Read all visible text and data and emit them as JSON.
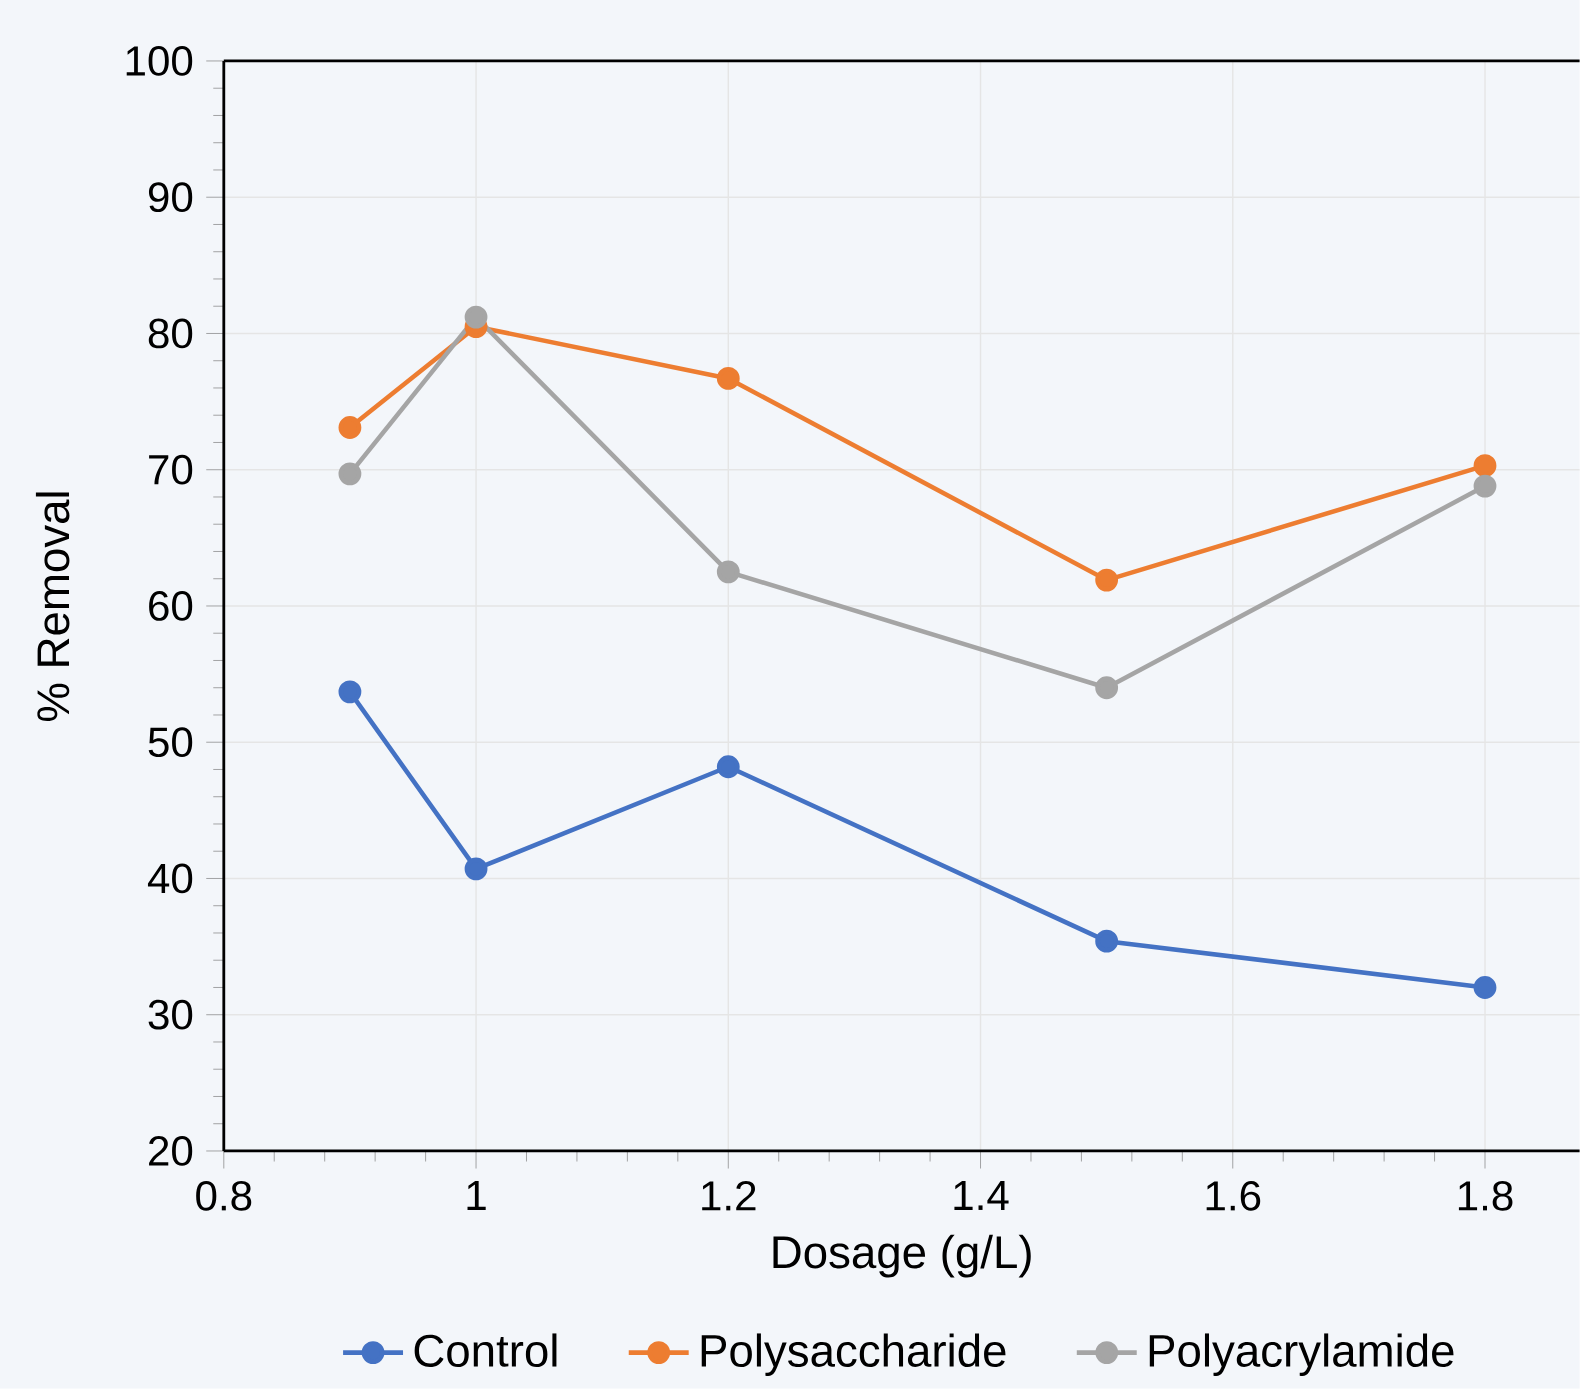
{
  "chart_data": {
    "type": "line",
    "xlabel": "Dosage (g/L)",
    "ylabel": "% Removal",
    "x": [
      0.9,
      1.0,
      1.2,
      1.5,
      1.8
    ],
    "xlim": [
      0.8,
      1.875
    ],
    "xticks": [
      0.8,
      1,
      1.2,
      1.4,
      1.6,
      1.8
    ],
    "ylim": [
      20,
      100
    ],
    "yticks": [
      20,
      30,
      40,
      50,
      60,
      70,
      80,
      90,
      100
    ],
    "grid": true,
    "legend": "bottom",
    "marker": "circle",
    "line_style": "solid",
    "series": [
      {
        "name": "Control",
        "color": "#4472c4",
        "values": [
          53.7,
          40.7,
          48.2,
          35.4,
          32.0
        ]
      },
      {
        "name": "Polysaccharide",
        "color": "#ed7d31",
        "values": [
          73.1,
          80.5,
          76.7,
          61.9,
          70.3
        ]
      },
      {
        "name": "Polyacrylamide",
        "color": "#a5a5a5",
        "values": [
          69.7,
          81.2,
          62.5,
          54.0,
          68.8
        ]
      }
    ]
  }
}
